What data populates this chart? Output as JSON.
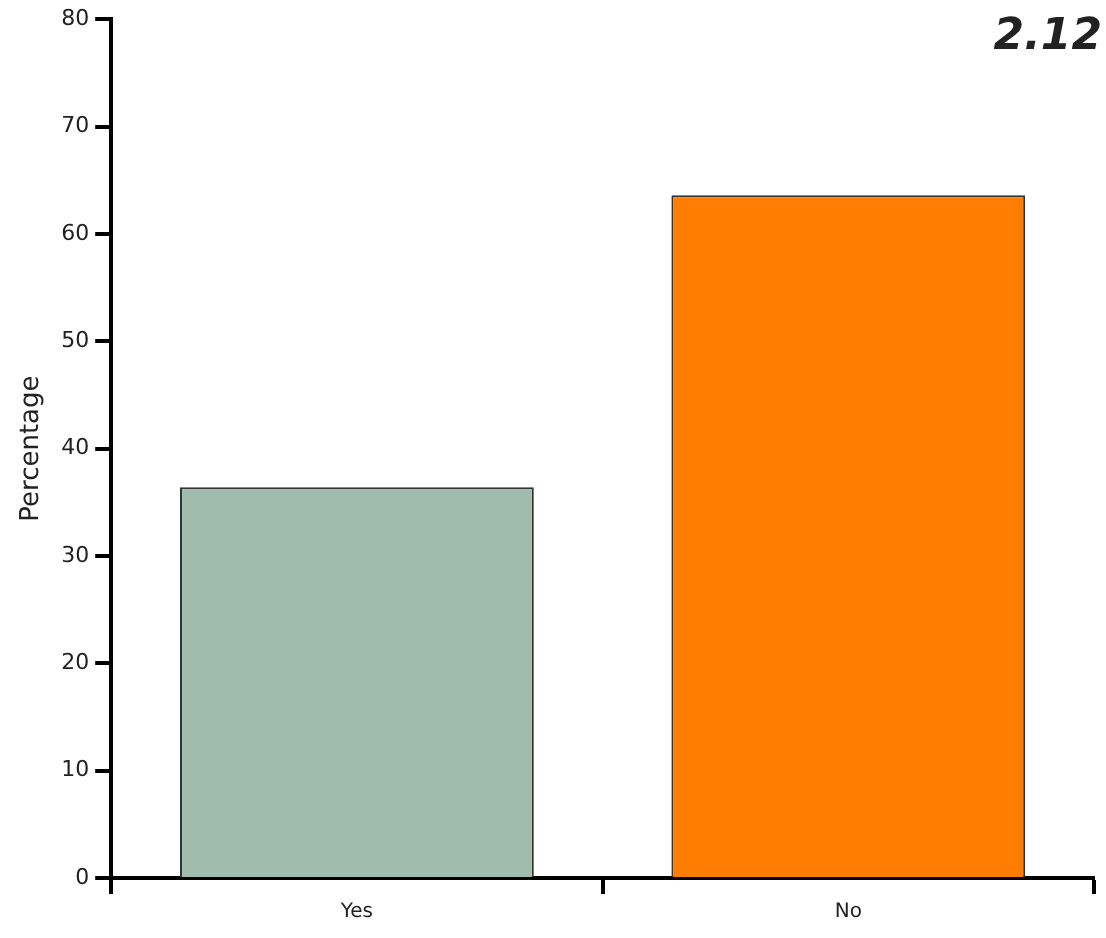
{
  "chart_data": {
    "type": "bar",
    "title": "2.12",
    "ylabel": "Percentage",
    "categories": [
      "Yes",
      "No"
    ],
    "values": [
      36.4,
      63.6
    ],
    "colors": [
      "#9fbcad",
      "#ff7d00"
    ],
    "ylim": [
      0,
      80
    ],
    "yticks": [
      0,
      10,
      20,
      30,
      40,
      50,
      60,
      70,
      80
    ],
    "grid": false,
    "legend": false
  }
}
